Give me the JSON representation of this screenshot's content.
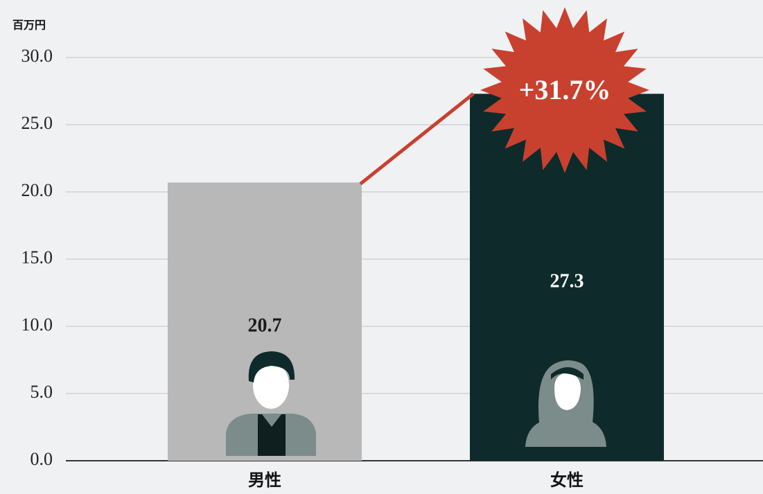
{
  "chart_data": {
    "type": "bar",
    "unit_label": "百万円",
    "categories": [
      "男性",
      "女性"
    ],
    "values": [
      20.7,
      27.3
    ],
    "colors": [
      "#b8b8b8",
      "#0f2a2a"
    ],
    "value_label_colors": [
      "#1a1a1a",
      "#ffffff"
    ],
    "ylim": [
      0,
      30
    ],
    "yticks": [
      {
        "value": 0,
        "label": "0.0"
      },
      {
        "value": 5,
        "label": "5.0"
      },
      {
        "value": 10,
        "label": "10.0"
      },
      {
        "value": 15,
        "label": "15.0"
      },
      {
        "value": 20,
        "label": "20.0"
      },
      {
        "value": 25,
        "label": "25.0"
      },
      {
        "value": 30,
        "label": "30.0"
      }
    ],
    "grid": true,
    "annotation": "+31.7%"
  }
}
